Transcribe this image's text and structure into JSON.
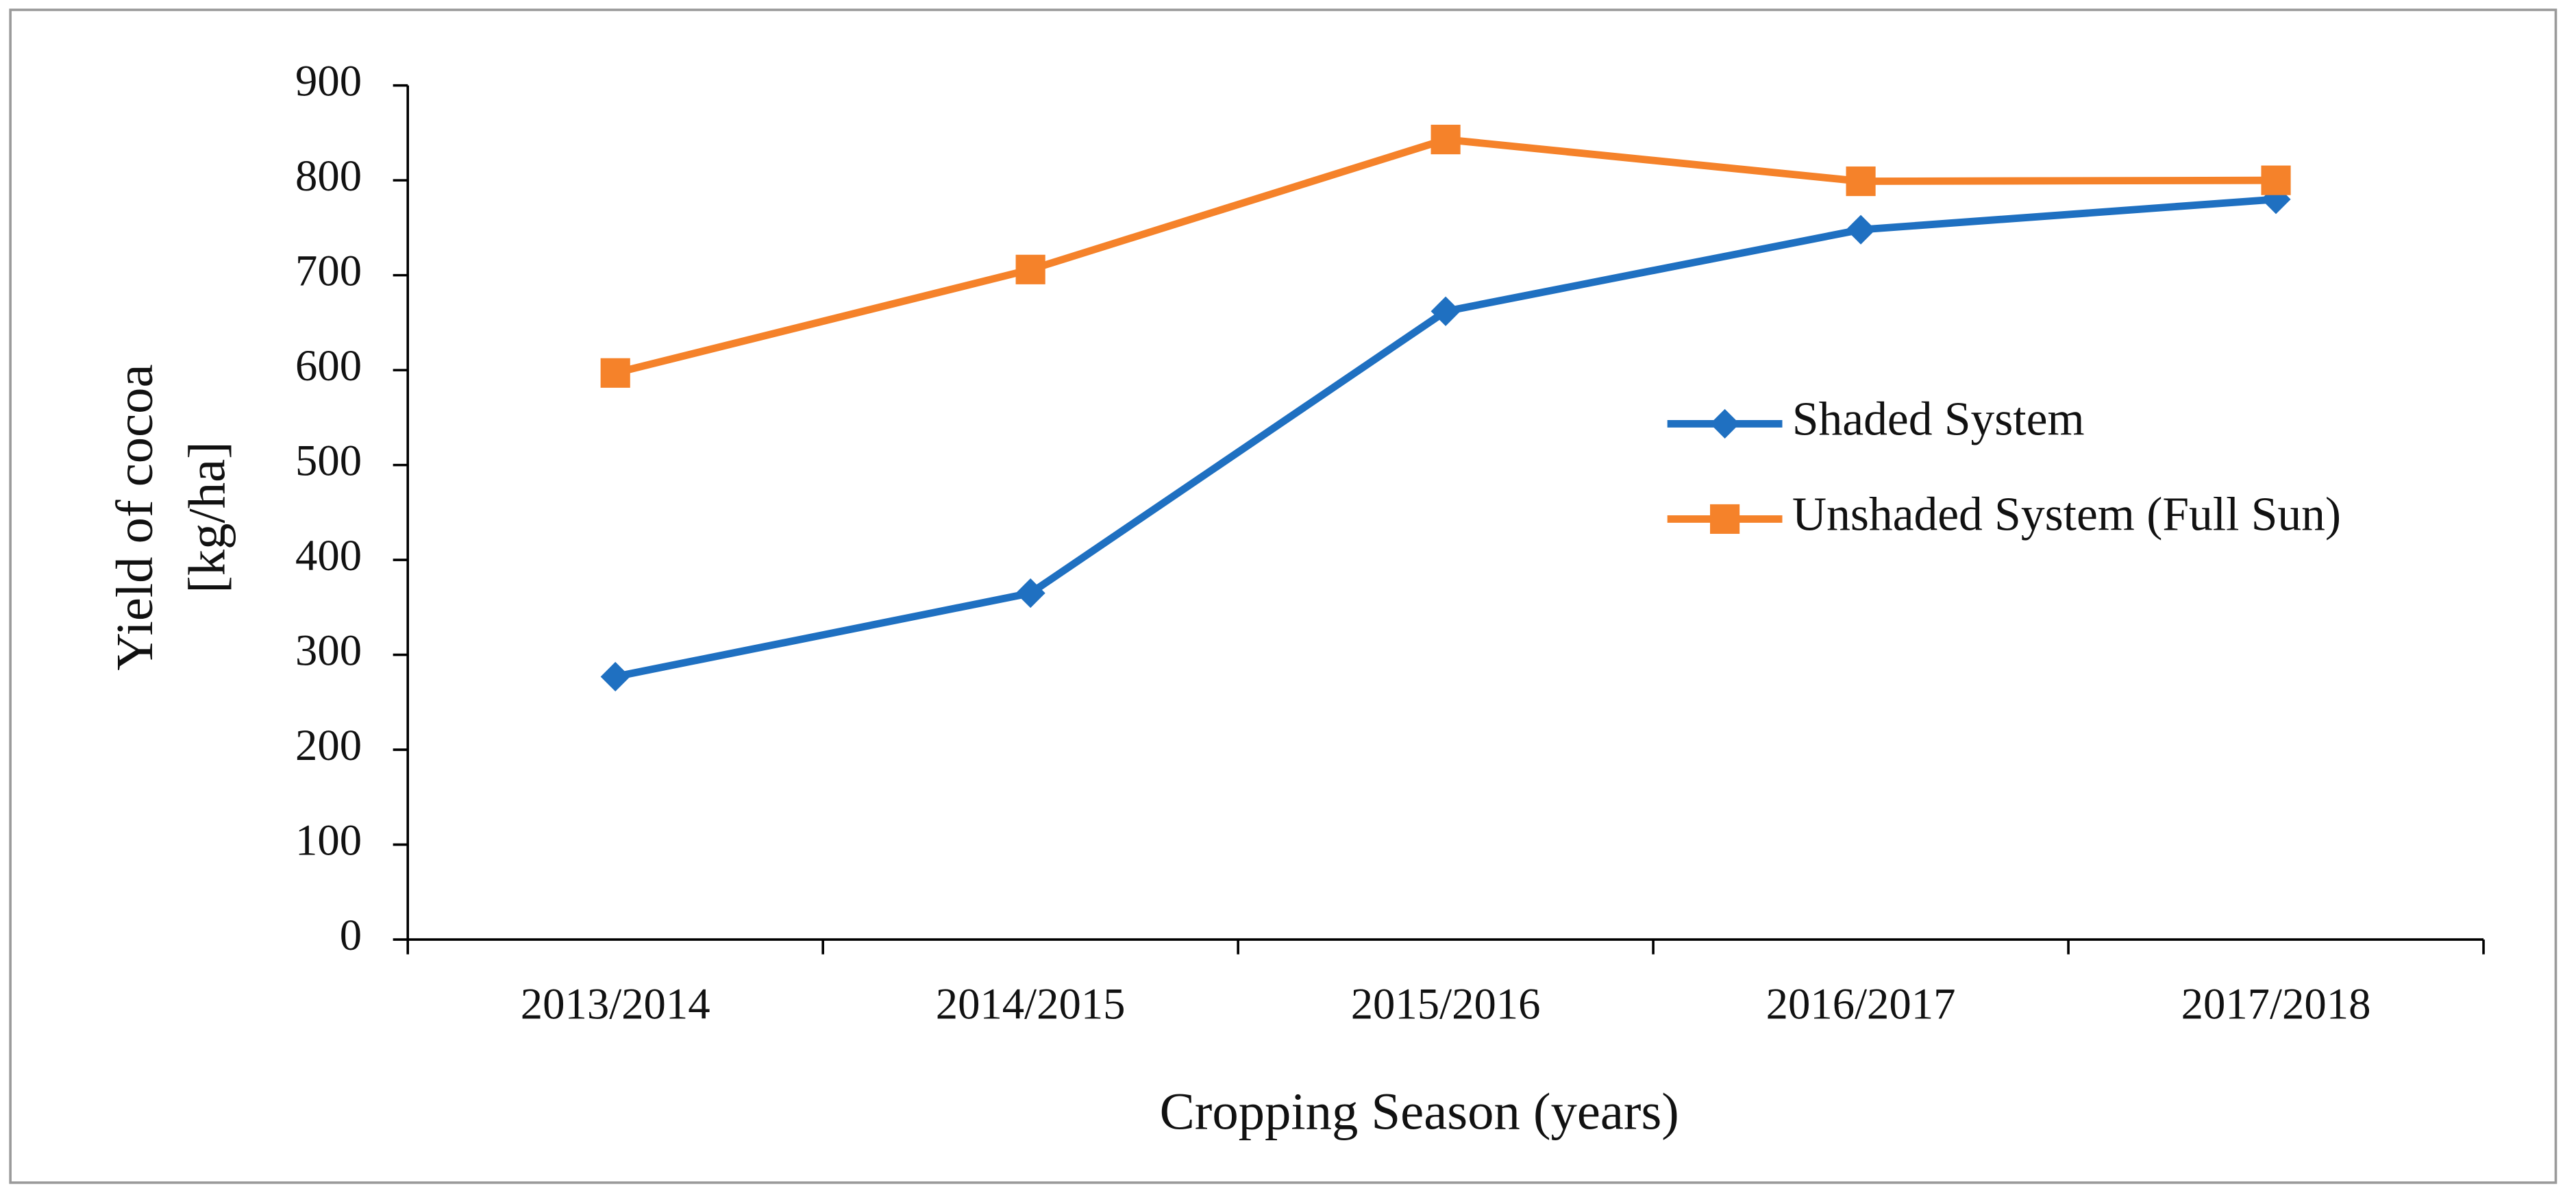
{
  "chart_data": {
    "type": "line",
    "x_label": "Cropping Season (years)",
    "y_label": [
      "Yield of cocoa",
      "[kg/ha]"
    ],
    "categories": [
      "2013/2014",
      "2014/2015",
      "2015/2016",
      "2016/2017",
      "2017/2018"
    ],
    "series": [
      {
        "name": "Shaded System",
        "color": "#1f70c1",
        "marker": "diamond",
        "values": [
          277,
          365,
          662,
          748,
          780
        ]
      },
      {
        "name": "Unshaded System (Full Sun)",
        "color": "#f5822a",
        "marker": "square",
        "values": [
          597,
          706,
          843,
          799,
          800
        ]
      }
    ],
    "ylim": [
      0,
      900
    ],
    "yticks": [
      0,
      100,
      200,
      300,
      400,
      500,
      600,
      700,
      800,
      900
    ],
    "grid": false,
    "legend": "right"
  }
}
